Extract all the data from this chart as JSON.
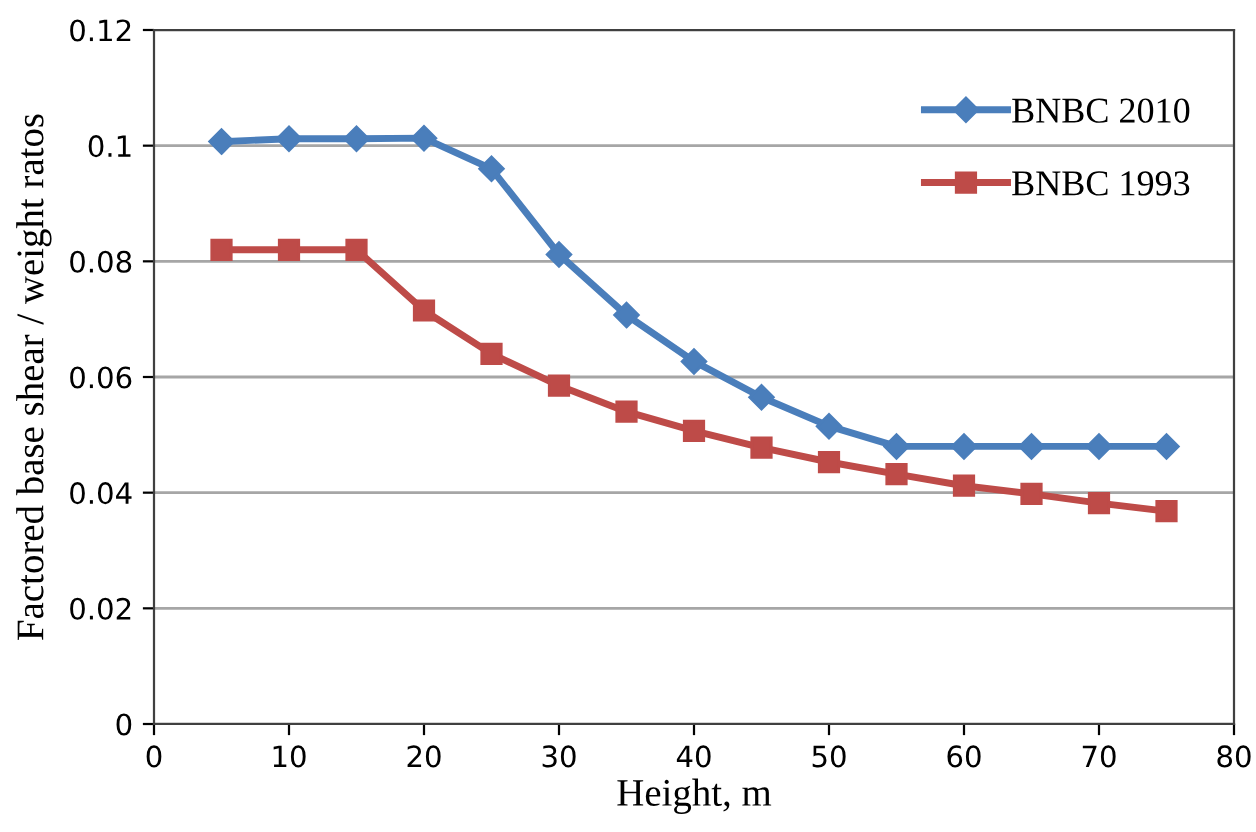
{
  "chart_data": {
    "type": "line",
    "xlabel": "Height, m",
    "ylabel": "Factored base shear / weight ratos",
    "x": [
      5,
      10,
      15,
      20,
      25,
      30,
      35,
      40,
      45,
      50,
      55,
      60,
      65,
      70,
      75
    ],
    "series": [
      {
        "name": "BNBC 2010",
        "color": "#4a7ebb",
        "marker": "diamond",
        "values": [
          0.1007,
          0.1012,
          0.1012,
          0.1013,
          0.096,
          0.0812,
          0.0707,
          0.0627,
          0.0565,
          0.0515,
          0.048,
          0.048,
          0.048,
          0.048,
          0.048
        ]
      },
      {
        "name": "BNBC 1993",
        "color": "#be4b48",
        "marker": "square",
        "values": [
          0.082,
          0.082,
          0.082,
          0.0715,
          0.064,
          0.0585,
          0.054,
          0.0507,
          0.0478,
          0.0453,
          0.0432,
          0.0412,
          0.0398,
          0.0382,
          0.0368
        ]
      }
    ],
    "xlim": [
      0,
      80
    ],
    "xticks": [
      0,
      10,
      20,
      30,
      40,
      50,
      60,
      70,
      80
    ],
    "ylim": [
      0,
      0.12
    ],
    "yticks": [
      0,
      0.02,
      0.04,
      0.06,
      0.08,
      0.1,
      0.12
    ],
    "grid": "y",
    "legend": "top right",
    "line_style": "solid"
  }
}
